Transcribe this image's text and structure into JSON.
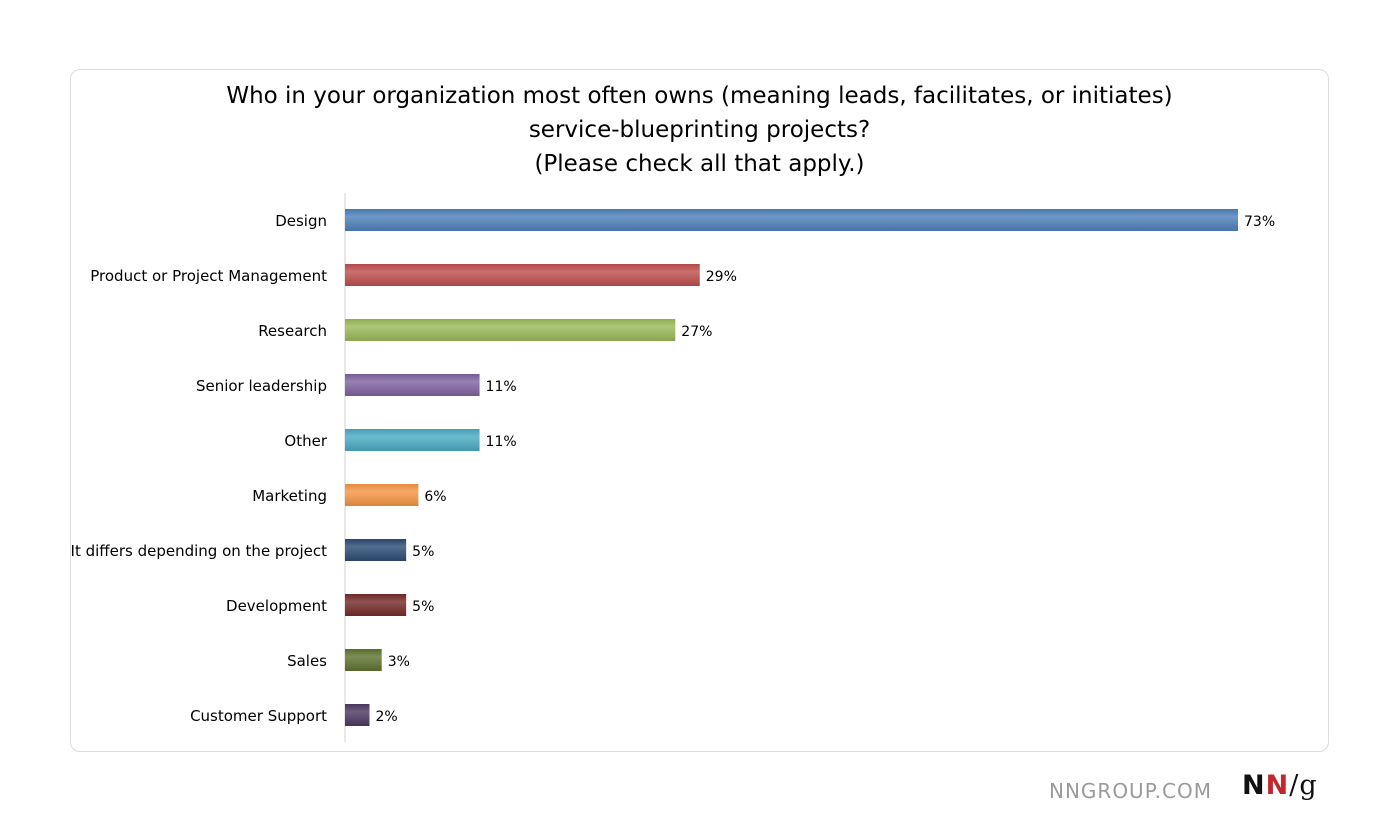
{
  "chart_data": {
    "type": "bar",
    "orientation": "horizontal",
    "title_lines": [
      "Who in your organization most often owns (meaning leads, facilitates, or initiates)",
      "service-blueprinting projects?",
      "(Please check all that apply.)"
    ],
    "categories": [
      "Design",
      "Product or Project Management",
      "Research",
      "Senior leadership",
      "Other",
      "Marketing",
      "It differs depending on the project",
      "Development",
      "Sales",
      "Customer Support"
    ],
    "values": [
      73,
      29,
      27,
      11,
      11,
      6,
      5,
      5,
      3,
      2
    ],
    "value_labels": [
      "73%",
      "29%",
      "27%",
      "11%",
      "11%",
      "6%",
      "5%",
      "5%",
      "3%",
      "2%"
    ],
    "colors": [
      "#4f81bd",
      "#c0504d",
      "#9bbb59",
      "#8064a2",
      "#4bacc6",
      "#f79646",
      "#2c4d75",
      "#772c2a",
      "#5f7530",
      "#4d3b62"
    ],
    "xlim": [
      0,
      73
    ],
    "grid": false,
    "legend": "none"
  },
  "footer": {
    "site": "NNGROUP.COM",
    "logo_n1": "N",
    "logo_n2": "N",
    "logo_slash_g": "/g"
  }
}
